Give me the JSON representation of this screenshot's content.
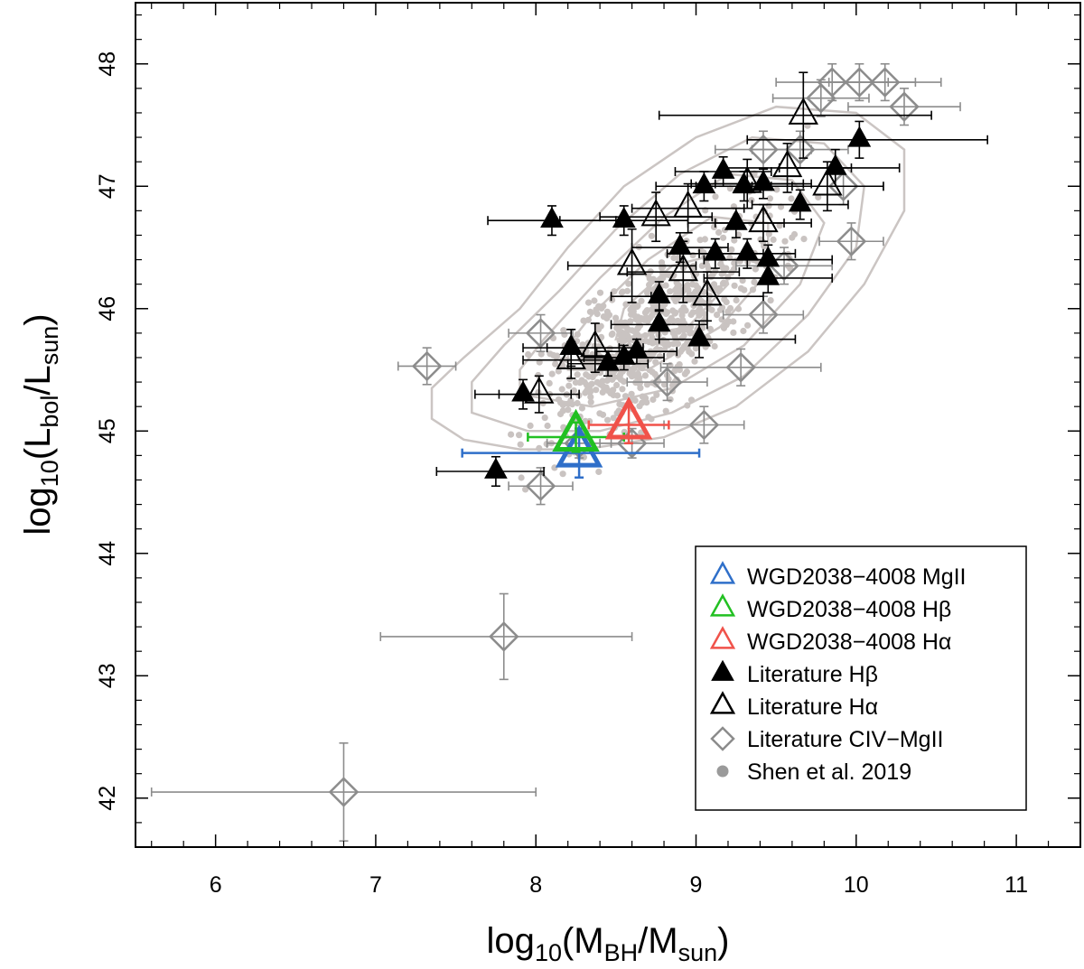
{
  "chart_data": {
    "type": "scatter",
    "title": "",
    "xlabel": {
      "base": "log",
      "sub1": "10",
      "main": "(M",
      "sub2": "BH",
      "mid": "/M",
      "sub3": "sun",
      "end": ")"
    },
    "ylabel": {
      "base": "log",
      "sub1": "10",
      "main": "(L",
      "sub2": "bol",
      "mid": "/L",
      "sub3": "sun",
      "end": ")"
    },
    "xlim": [
      5.5,
      11.4
    ],
    "ylim": [
      41.6,
      48.5
    ],
    "xticks": [
      6,
      7,
      8,
      9,
      10,
      11
    ],
    "xtick_labels": [
      "6",
      "7",
      "8",
      "9",
      "10",
      "11"
    ],
    "yticks": [
      42,
      43,
      44,
      45,
      46,
      47,
      48
    ],
    "ytick_labels": [
      "42",
      "43",
      "44",
      "45",
      "46",
      "47",
      "48"
    ],
    "legend": {
      "position": "bottom-right",
      "entries": [
        {
          "label": "WGD2038−4008 MgII",
          "marker": "open-triangle",
          "color": "#2f6fc9"
        },
        {
          "label": "WGD2038−4008 Hβ",
          "marker": "open-triangle",
          "color": "#22c022"
        },
        {
          "label": "WGD2038−4008 Hα",
          "marker": "open-triangle",
          "color": "#f0524a"
        },
        {
          "label": "Literature Hβ",
          "marker": "filled-triangle",
          "color": "#000000"
        },
        {
          "label": "Literature Hα",
          "marker": "open-triangle",
          "color": "#000000"
        },
        {
          "label": "Literature CIV−MgII",
          "marker": "open-diamond",
          "color": "#8c8c8c"
        },
        {
          "label": "Shen et al. 2019",
          "marker": "dot",
          "color": "#9a9a9a"
        }
      ]
    },
    "colors": {
      "mgii": "#2f6fc9",
      "hbeta": "#22c022",
      "halpha": "#f0524a",
      "lit": "#000000",
      "civ": "#8c8c8c",
      "shen": "#c9c3c1",
      "contour": "#cbc5c3"
    },
    "series": [
      {
        "name": "WGD2038−4008 MgII",
        "points": [
          {
            "x": 8.27,
            "y": 44.82,
            "xerr": [
              0.73,
              0.75
            ],
            "yerr": 0.2
          }
        ]
      },
      {
        "name": "WGD2038−4008 Hβ",
        "points": [
          {
            "x": 8.25,
            "y": 44.95,
            "xerr": [
              0.3,
              0.3
            ],
            "yerr": 0.12
          }
        ]
      },
      {
        "name": "WGD2038−4008 Hα",
        "points": [
          {
            "x": 8.58,
            "y": 45.05,
            "xerr": [
              0.25,
              0.25
            ],
            "yerr": 0.15
          }
        ]
      },
      {
        "name": "Literature Hβ",
        "points": [
          {
            "x": 7.75,
            "y": 44.67,
            "xerr": [
              0.37,
              0.3
            ],
            "yerr": 0.12
          },
          {
            "x": 7.92,
            "y": 45.3,
            "xerr": [
              0.3,
              0.3
            ],
            "yerr": 0.12
          },
          {
            "x": 8.22,
            "y": 45.68,
            "xerr": [
              0.3,
              0.3
            ],
            "yerr": 0.15
          },
          {
            "x": 8.45,
            "y": 45.55,
            "xerr": [
              0.25,
              0.25
            ],
            "yerr": 0.1
          },
          {
            "x": 8.55,
            "y": 45.6,
            "xerr": [
              0.25,
              0.25
            ],
            "yerr": 0.1
          },
          {
            "x": 8.63,
            "y": 45.65,
            "xerr": [
              0.25,
              0.25
            ],
            "yerr": 0.1
          },
          {
            "x": 8.77,
            "y": 45.87,
            "xerr": [
              0.3,
              0.3
            ],
            "yerr": 0.12
          },
          {
            "x": 8.77,
            "y": 46.1,
            "xerr": [
              0.3,
              0.3
            ],
            "yerr": 0.12
          },
          {
            "x": 9.02,
            "y": 45.75,
            "xerr": [
              0.25,
              0.6
            ],
            "yerr": 0.15
          },
          {
            "x": 8.9,
            "y": 46.5,
            "xerr": [
              0.3,
              0.3
            ],
            "yerr": 0.12
          },
          {
            "x": 9.12,
            "y": 46.45,
            "xerr": [
              0.3,
              0.3
            ],
            "yerr": 0.12
          },
          {
            "x": 9.32,
            "y": 46.45,
            "xerr": [
              0.3,
              0.3
            ],
            "yerr": 0.12
          },
          {
            "x": 9.25,
            "y": 46.7,
            "xerr": [
              0.3,
              0.3
            ],
            "yerr": 0.12
          },
          {
            "x": 9.45,
            "y": 46.4,
            "xerr": [
              0.4,
              0.4
            ],
            "yerr": 0.12
          },
          {
            "x": 9.45,
            "y": 46.25,
            "xerr": [
              0.4,
              0.4
            ],
            "yerr": 0.12
          },
          {
            "x": 9.05,
            "y": 47.0,
            "xerr": [
              0.3,
              0.3
            ],
            "yerr": 0.12
          },
          {
            "x": 9.17,
            "y": 47.12,
            "xerr": [
              0.3,
              0.3
            ],
            "yerr": 0.12
          },
          {
            "x": 9.3,
            "y": 47.0,
            "xerr": [
              0.3,
              0.3
            ],
            "yerr": 0.12
          },
          {
            "x": 9.42,
            "y": 47.02,
            "xerr": [
              0.3,
              0.3
            ],
            "yerr": 0.12
          },
          {
            "x": 9.65,
            "y": 46.85,
            "xerr": [
              0.3,
              0.3
            ],
            "yerr": 0.12
          },
          {
            "x": 9.87,
            "y": 47.15,
            "xerr": [
              0.35,
              0.4
            ],
            "yerr": 0.15
          },
          {
            "x": 10.02,
            "y": 47.38,
            "xerr": [
              0.7,
              0.8
            ],
            "yerr": 0.15
          },
          {
            "x": 8.1,
            "y": 46.72,
            "xerr": [
              0.4,
              0.4
            ],
            "yerr": 0.12
          },
          {
            "x": 8.55,
            "y": 46.72,
            "xerr": [
              0.4,
              0.4
            ],
            "yerr": 0.12
          }
        ]
      },
      {
        "name": "Literature Hα",
        "points": [
          {
            "x": 8.02,
            "y": 45.3,
            "xerr": [
              0.25,
              0.25
            ],
            "yerr": 0.15
          },
          {
            "x": 8.22,
            "y": 45.58,
            "xerr": [
              0.3,
              0.3
            ],
            "yerr": 0.15
          },
          {
            "x": 8.37,
            "y": 45.68,
            "xerr": [
              0.3,
              0.3
            ],
            "yerr": 0.2
          },
          {
            "x": 8.6,
            "y": 46.35,
            "xerr": [
              0.4,
              0.4
            ],
            "yerr": 0.3
          },
          {
            "x": 8.92,
            "y": 46.3,
            "xerr": [
              0.35,
              0.35
            ],
            "yerr": 0.25
          },
          {
            "x": 9.07,
            "y": 46.1,
            "xerr": [
              0.35,
              0.35
            ],
            "yerr": 0.2
          },
          {
            "x": 8.75,
            "y": 46.75,
            "xerr": [
              0.35,
              0.35
            ],
            "yerr": 0.2
          },
          {
            "x": 8.95,
            "y": 46.82,
            "xerr": [
              0.35,
              0.35
            ],
            "yerr": 0.2
          },
          {
            "x": 9.32,
            "y": 47.02,
            "xerr": [
              0.35,
              0.35
            ],
            "yerr": 0.2
          },
          {
            "x": 9.57,
            "y": 47.15,
            "xerr": [
              0.4,
              0.4
            ],
            "yerr": 0.2
          },
          {
            "x": 9.67,
            "y": 47.58,
            "xerr": [
              0.9,
              0.8
            ],
            "yerr": 0.35
          },
          {
            "x": 9.42,
            "y": 46.7,
            "xerr": [
              0.3,
              0.3
            ],
            "yerr": 0.15
          },
          {
            "x": 9.82,
            "y": 47.0,
            "xerr": [
              0.35,
              0.35
            ],
            "yerr": 0.2
          }
        ]
      },
      {
        "name": "Literature CIV−MgII",
        "points": [
          {
            "x": 6.8,
            "y": 42.05,
            "xerr": [
              1.2,
              1.2
            ],
            "yerr": 0.4
          },
          {
            "x": 7.8,
            "y": 43.32,
            "xerr": [
              0.77,
              0.8
            ],
            "yerr": 0.35
          },
          {
            "x": 7.32,
            "y": 45.53,
            "xerr": [
              0.18,
              0.18
            ],
            "yerr": 0.15
          },
          {
            "x": 8.03,
            "y": 45.8,
            "xerr": [
              0.2,
              0.2
            ],
            "yerr": 0.15
          },
          {
            "x": 8.03,
            "y": 44.55,
            "xerr": [
              0.2,
              0.2
            ],
            "yerr": 0.15
          },
          {
            "x": 8.27,
            "y": 44.9,
            "xerr": [
              0.2,
              0.2
            ],
            "yerr": 0.12
          },
          {
            "x": 8.6,
            "y": 44.9,
            "xerr": [
              0.2,
              0.2
            ],
            "yerr": 0.12
          },
          {
            "x": 8.82,
            "y": 45.4,
            "xerr": [
              0.25,
              0.25
            ],
            "yerr": 0.15
          },
          {
            "x": 9.05,
            "y": 45.05,
            "xerr": [
              0.25,
              0.25
            ],
            "yerr": 0.15
          },
          {
            "x": 9.28,
            "y": 45.52,
            "xerr": [
              0.5,
              0.5
            ],
            "yerr": 0.15
          },
          {
            "x": 9.42,
            "y": 45.95,
            "xerr": [
              0.25,
              0.25
            ],
            "yerr": 0.15
          },
          {
            "x": 9.55,
            "y": 46.35,
            "xerr": [
              0.3,
              0.3
            ],
            "yerr": 0.15
          },
          {
            "x": 9.97,
            "y": 46.55,
            "xerr": [
              0.2,
              0.2
            ],
            "yerr": 0.15
          },
          {
            "x": 9.92,
            "y": 47.0,
            "xerr": [
              0.25,
              0.25
            ],
            "yerr": 0.15
          },
          {
            "x": 9.42,
            "y": 47.3,
            "xerr": [
              0.3,
              0.3
            ],
            "yerr": 0.15
          },
          {
            "x": 9.78,
            "y": 47.72,
            "xerr": [
              0.3,
              0.3
            ],
            "yerr": 0.15
          },
          {
            "x": 9.85,
            "y": 47.85,
            "xerr": [
              0.35,
              0.35
            ],
            "yerr": 0.15
          },
          {
            "x": 10.02,
            "y": 47.85,
            "xerr": [
              0.35,
              0.35
            ],
            "yerr": 0.15
          },
          {
            "x": 10.18,
            "y": 47.85,
            "xerr": [
              0.35,
              0.35
            ],
            "yerr": 0.15
          },
          {
            "x": 10.3,
            "y": 47.65,
            "xerr": [
              0.35,
              0.35
            ],
            "yerr": 0.15
          },
          {
            "x": 9.65,
            "y": 47.3,
            "xerr": [
              0.3,
              0.3
            ],
            "yerr": 0.15
          }
        ]
      }
    ],
    "contours": [
      [
        [
          7.35,
          45.1
        ],
        [
          7.55,
          44.93
        ],
        [
          7.9,
          44.85
        ],
        [
          8.3,
          44.85
        ],
        [
          8.8,
          44.95
        ],
        [
          9.25,
          45.2
        ],
        [
          9.7,
          45.65
        ],
        [
          10.05,
          46.2
        ],
        [
          10.3,
          46.8
        ],
        [
          10.3,
          47.3
        ],
        [
          10.0,
          47.6
        ],
        [
          9.5,
          47.65
        ],
        [
          9.0,
          47.4
        ],
        [
          8.55,
          47.0
        ],
        [
          8.2,
          46.5
        ],
        [
          7.9,
          46.0
        ],
        [
          7.55,
          45.6
        ],
        [
          7.35,
          45.35
        ]
      ],
      [
        [
          7.6,
          45.15
        ],
        [
          7.95,
          45.0
        ],
        [
          8.4,
          45.0
        ],
        [
          8.85,
          45.15
        ],
        [
          9.3,
          45.45
        ],
        [
          9.7,
          45.95
        ],
        [
          10.0,
          46.5
        ],
        [
          10.05,
          47.0
        ],
        [
          9.8,
          47.35
        ],
        [
          9.35,
          47.4
        ],
        [
          8.9,
          47.1
        ],
        [
          8.5,
          46.65
        ],
        [
          8.15,
          46.15
        ],
        [
          7.8,
          45.7
        ],
        [
          7.6,
          45.4
        ]
      ],
      [
        [
          7.9,
          45.3
        ],
        [
          8.35,
          45.2
        ],
        [
          8.85,
          45.35
        ],
        [
          9.3,
          45.7
        ],
        [
          9.65,
          46.2
        ],
        [
          9.8,
          46.7
        ],
        [
          9.6,
          47.05
        ],
        [
          9.2,
          47.1
        ],
        [
          8.8,
          46.75
        ],
        [
          8.4,
          46.25
        ],
        [
          8.05,
          45.75
        ],
        [
          7.9,
          45.5
        ]
      ],
      [
        [
          8.2,
          45.5
        ],
        [
          8.7,
          45.5
        ],
        [
          9.15,
          45.85
        ],
        [
          9.45,
          46.3
        ],
        [
          9.45,
          46.7
        ],
        [
          9.1,
          46.75
        ],
        [
          8.7,
          46.4
        ],
        [
          8.35,
          45.95
        ],
        [
          8.2,
          45.7
        ]
      ],
      [
        [
          8.5,
          45.75
        ],
        [
          8.95,
          45.85
        ],
        [
          9.2,
          46.2
        ],
        [
          9.15,
          46.45
        ],
        [
          8.85,
          46.35
        ],
        [
          8.55,
          46.0
        ]
      ]
    ]
  }
}
